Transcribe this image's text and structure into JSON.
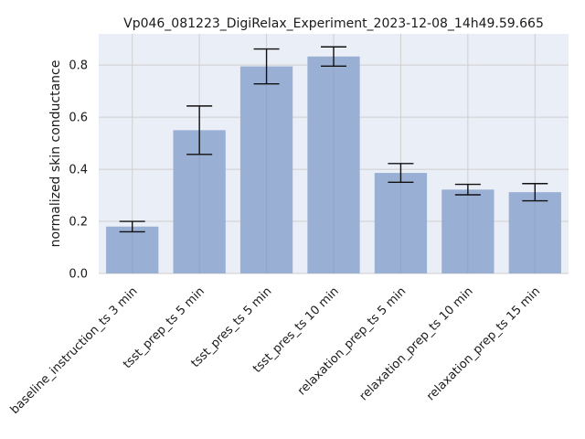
{
  "chart_data": {
    "type": "bar",
    "title": "Vp046_081223_DigiRelax_Experiment_2023-12-08_14h49.59.665",
    "xlabel": "",
    "ylabel": "normalized skin conductance",
    "categories": [
      "baseline_instruction_ts 3 min",
      "tsst_prep_ts 5 min",
      "tsst_pres_ts 5 min",
      "tsst_pres_ts 10 min",
      "relaxation_prep_ts 5 min",
      "relaxation_prep_ts 10 min",
      "relaxation_prep_ts 15 min"
    ],
    "values": [
      0.18,
      0.55,
      0.795,
      0.833,
      0.386,
      0.322,
      0.312
    ],
    "error": [
      0.02,
      0.093,
      0.067,
      0.037,
      0.036,
      0.02,
      0.033
    ],
    "ylim": [
      0,
      0.92
    ],
    "yticks": [
      0.0,
      0.2,
      0.4,
      0.6,
      0.8
    ],
    "ytick_labels": [
      "0.0",
      "0.2",
      "0.4",
      "0.6",
      "0.8"
    ],
    "grid": true,
    "colors": {
      "background": "#eaeef6",
      "bar": "#9aafd4",
      "grid": "#cfcfcf",
      "errorbar": "#111111"
    }
  }
}
